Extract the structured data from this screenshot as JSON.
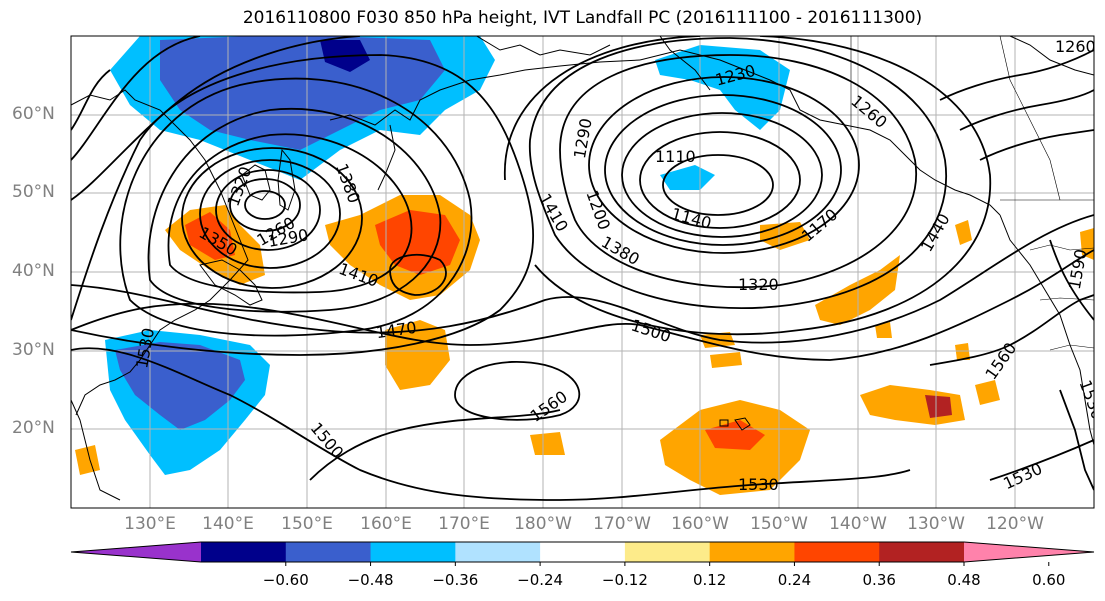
{
  "title": "2016110800 F030 850 hPa height, IVT Landfall PC (2016111100 - 2016111300)",
  "lat_labels": [
    "60°N",
    "50°N",
    "40°N",
    "30°N",
    "20°N"
  ],
  "lon_labels": [
    "130°E",
    "140°E",
    "150°E",
    "160°E",
    "170°E",
    "180°W",
    "170°W",
    "160°W",
    "150°W",
    "140°W",
    "130°W",
    "120°W"
  ],
  "colorbar": {
    "ticks": [
      "−0.60",
      "−0.48",
      "−0.36",
      "−0.24",
      "−0.12",
      "0.12",
      "0.24",
      "0.36",
      "0.48",
      "0.60"
    ],
    "colors": [
      "#9932cc",
      "#00008b",
      "#3a5fcd",
      "#00bfff",
      "#b0e2ff",
      "#ffffff",
      "#fdeb8a",
      "#ffa500",
      "#ff4500",
      "#b22222",
      "#ff82ab"
    ]
  },
  "contour_labels": {
    "c1230": "1230",
    "c1290": "1290",
    "c1260": "1260",
    "c1110": "1110",
    "c1140": "1140",
    "c1170": "1170",
    "c1200": "1200",
    "c1410a": "1410",
    "c1380a": "1380",
    "c1320": "1320",
    "c1440": "1440",
    "c1500a": "1500",
    "c1560a": "1560",
    "c1530a": "1530",
    "c1470": "1470",
    "c1410b": "1410",
    "c1350": "1350",
    "c1260b": "1260",
    "c1290b": "1290",
    "c1320b": "1320",
    "c1380b": "1380",
    "c1530b": "1530",
    "c1500b": "1500",
    "c1560b": "1560",
    "c1590": "1590",
    "c1530c": "1530",
    "c1530d": "1530",
    "c1260c": "1260"
  }
}
